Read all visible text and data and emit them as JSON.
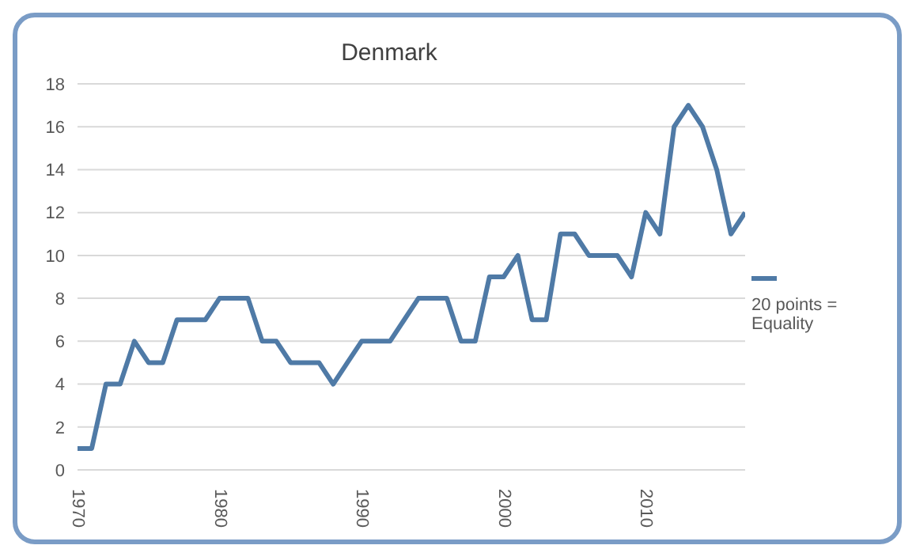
{
  "chart_data": {
    "type": "line",
    "title": "Denmark",
    "x": [
      1970,
      1971,
      1972,
      1973,
      1974,
      1975,
      1976,
      1977,
      1978,
      1979,
      1980,
      1981,
      1982,
      1983,
      1984,
      1985,
      1986,
      1987,
      1988,
      1989,
      1990,
      1991,
      1992,
      1993,
      1994,
      1995,
      1996,
      1997,
      1998,
      1999,
      2000,
      2001,
      2002,
      2003,
      2004,
      2005,
      2006,
      2007,
      2008,
      2009,
      2010,
      2011,
      2012,
      2013,
      2014,
      2015,
      2016,
      2017
    ],
    "series": [
      {
        "name": "20 points = Equality",
        "color": "#4f7aa6",
        "values": [
          1,
          1,
          4,
          4,
          6,
          5,
          5,
          7,
          7,
          7,
          8,
          8,
          8,
          6,
          6,
          5,
          5,
          5,
          4,
          5,
          6,
          6,
          6,
          7,
          8,
          8,
          8,
          6,
          6,
          9,
          9,
          10,
          7,
          7,
          11,
          11,
          10,
          10,
          10,
          9,
          12,
          11,
          16,
          17,
          16,
          14,
          11,
          12
        ]
      }
    ],
    "xlim": [
      1970,
      2017
    ],
    "xticks": [
      1970,
      1980,
      1990,
      2000,
      2010
    ],
    "ylim": [
      0,
      18
    ],
    "yticks": [
      0,
      2,
      4,
      6,
      8,
      10,
      12,
      14,
      16,
      18
    ],
    "grid": "y",
    "legend": "right",
    "marker": "none",
    "line_style": "solid"
  }
}
